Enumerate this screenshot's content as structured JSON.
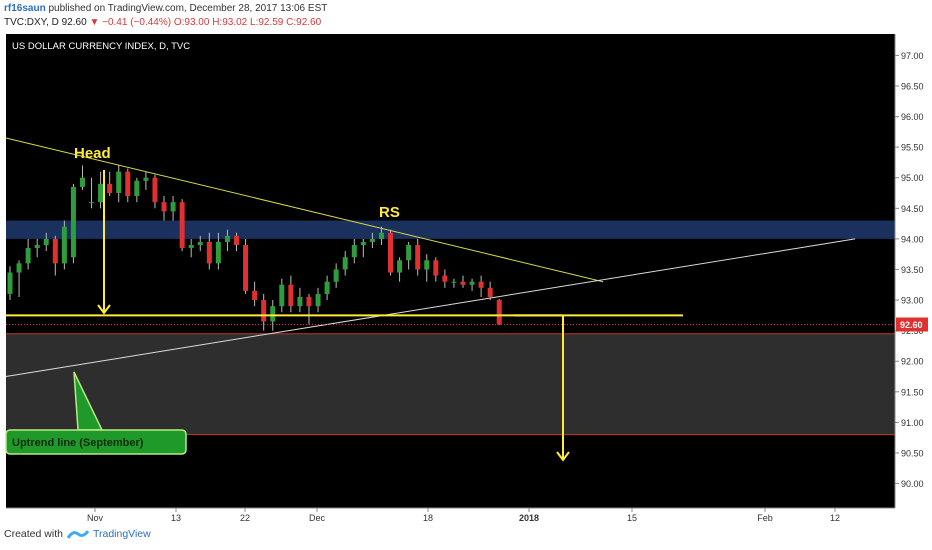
{
  "header": {
    "user": "rf16saun",
    "published": "published on TradingView.com, December 28, 2017 13:06 EST",
    "symbol": "TVC:DXY, D",
    "last": "92.60",
    "change": "−0.41 (−0.44%)",
    "ohlc": "O:93.00 H:93.02 L:92.59 C:92.60"
  },
  "footer": {
    "created": "Created with",
    "brand": "TradingView"
  },
  "colors": {
    "up": "#2e9e3c",
    "down": "#e03030",
    "yellow": "#ffeb3b",
    "zone": "#1e3a6e",
    "bg": "#000000"
  },
  "chart_data": {
    "type": "candlestick",
    "title": "US DOLLAR CURRENCY INDEX, D, TVC",
    "ylim": [
      89.6,
      97.35
    ],
    "y_ticks": [
      "97.00",
      "96.50",
      "96.00",
      "95.50",
      "95.00",
      "94.50",
      "94.00",
      "93.50",
      "93.00",
      "92.50",
      "92.00",
      "91.50",
      "91.00",
      "90.50",
      "90.00"
    ],
    "x_ticks": [
      "Nov",
      "13",
      "22",
      "Dec",
      "18",
      "2018",
      "15",
      "Feb",
      "12"
    ],
    "last_price_label": "92.60",
    "candles": [
      {
        "o": 93.1,
        "h": 93.55,
        "l": 93.0,
        "c": 93.45
      },
      {
        "o": 93.45,
        "h": 93.65,
        "l": 93.05,
        "c": 93.6
      },
      {
        "o": 93.6,
        "h": 94.0,
        "l": 93.5,
        "c": 93.85
      },
      {
        "o": 93.85,
        "h": 94.0,
        "l": 93.7,
        "c": 93.9
      },
      {
        "o": 93.9,
        "h": 94.1,
        "l": 93.8,
        "c": 94.0
      },
      {
        "o": 94.0,
        "h": 94.05,
        "l": 93.4,
        "c": 93.6
      },
      {
        "o": 93.6,
        "h": 94.3,
        "l": 93.5,
        "c": 94.2
      },
      {
        "o": 93.7,
        "h": 94.9,
        "l": 93.6,
        "c": 94.85
      },
      {
        "o": 94.85,
        "h": 95.2,
        "l": 94.8,
        "c": 95.0
      },
      {
        "o": 94.6,
        "h": 95.0,
        "l": 94.5,
        "c": 94.6
      },
      {
        "o": 94.6,
        "h": 95.1,
        "l": 94.5,
        "c": 94.9
      },
      {
        "o": 94.9,
        "h": 95.1,
        "l": 94.7,
        "c": 94.75
      },
      {
        "o": 94.75,
        "h": 95.2,
        "l": 94.6,
        "c": 95.1
      },
      {
        "o": 95.1,
        "h": 95.15,
        "l": 94.6,
        "c": 94.7
      },
      {
        "o": 94.7,
        "h": 95.0,
        "l": 94.6,
        "c": 94.95
      },
      {
        "o": 94.95,
        "h": 95.1,
        "l": 94.8,
        "c": 95.0
      },
      {
        "o": 95.0,
        "h": 95.05,
        "l": 94.5,
        "c": 94.6
      },
      {
        "o": 94.6,
        "h": 94.7,
        "l": 94.3,
        "c": 94.45
      },
      {
        "o": 94.45,
        "h": 94.7,
        "l": 94.3,
        "c": 94.6
      },
      {
        "o": 94.6,
        "h": 94.65,
        "l": 93.8,
        "c": 93.85
      },
      {
        "o": 93.85,
        "h": 94.0,
        "l": 93.7,
        "c": 93.9
      },
      {
        "o": 93.9,
        "h": 94.05,
        "l": 93.8,
        "c": 93.95
      },
      {
        "o": 93.95,
        "h": 94.1,
        "l": 93.5,
        "c": 93.6
      },
      {
        "o": 93.6,
        "h": 94.1,
        "l": 93.5,
        "c": 93.95
      },
      {
        "o": 93.95,
        "h": 94.15,
        "l": 93.8,
        "c": 94.05
      },
      {
        "o": 94.05,
        "h": 94.1,
        "l": 93.8,
        "c": 93.9
      },
      {
        "o": 93.9,
        "h": 94.0,
        "l": 93.1,
        "c": 93.15
      },
      {
        "o": 93.15,
        "h": 93.3,
        "l": 92.9,
        "c": 93.0
      },
      {
        "o": 93.0,
        "h": 93.1,
        "l": 92.5,
        "c": 92.65
      },
      {
        "o": 92.65,
        "h": 93.0,
        "l": 92.5,
        "c": 92.9
      },
      {
        "o": 92.9,
        "h": 93.35,
        "l": 92.8,
        "c": 93.25
      },
      {
        "o": 93.25,
        "h": 93.4,
        "l": 92.8,
        "c": 92.9
      },
      {
        "o": 92.9,
        "h": 93.2,
        "l": 92.8,
        "c": 93.05
      },
      {
        "o": 93.05,
        "h": 93.1,
        "l": 92.6,
        "c": 92.9
      },
      {
        "o": 92.9,
        "h": 93.2,
        "l": 92.8,
        "c": 93.1
      },
      {
        "o": 93.1,
        "h": 93.4,
        "l": 93.0,
        "c": 93.3
      },
      {
        "o": 93.3,
        "h": 93.6,
        "l": 93.2,
        "c": 93.5
      },
      {
        "o": 93.5,
        "h": 93.8,
        "l": 93.4,
        "c": 93.7
      },
      {
        "o": 93.7,
        "h": 94.0,
        "l": 93.6,
        "c": 93.9
      },
      {
        "o": 93.9,
        "h": 94.0,
        "l": 93.7,
        "c": 93.95
      },
      {
        "o": 93.95,
        "h": 94.1,
        "l": 93.85,
        "c": 94.0
      },
      {
        "o": 94.0,
        "h": 94.2,
        "l": 93.9,
        "c": 94.1
      },
      {
        "o": 94.1,
        "h": 94.15,
        "l": 93.4,
        "c": 93.45
      },
      {
        "o": 93.45,
        "h": 93.7,
        "l": 93.3,
        "c": 93.65
      },
      {
        "o": 93.65,
        "h": 93.95,
        "l": 93.5,
        "c": 93.9
      },
      {
        "o": 93.9,
        "h": 94.0,
        "l": 93.4,
        "c": 93.5
      },
      {
        "o": 93.5,
        "h": 93.75,
        "l": 93.3,
        "c": 93.65
      },
      {
        "o": 93.65,
        "h": 93.7,
        "l": 93.3,
        "c": 93.4
      },
      {
        "o": 93.4,
        "h": 93.5,
        "l": 93.2,
        "c": 93.3
      },
      {
        "o": 93.3,
        "h": 93.35,
        "l": 93.2,
        "c": 93.3
      },
      {
        "o": 93.3,
        "h": 93.4,
        "l": 93.2,
        "c": 93.25
      },
      {
        "o": 93.25,
        "h": 93.35,
        "l": 93.15,
        "c": 93.3
      },
      {
        "o": 93.3,
        "h": 93.4,
        "l": 93.05,
        "c": 93.2
      },
      {
        "o": 93.2,
        "h": 93.3,
        "l": 93.0,
        "c": 93.05
      },
      {
        "o": 93.0,
        "h": 93.02,
        "l": 92.59,
        "c": 92.6
      }
    ],
    "annotations": {
      "head": "Head",
      "rs": "RS",
      "uptrend": "Uptrend line (September)",
      "neckline_price": 92.75,
      "resistance_zone": [
        94.0,
        94.3
      ],
      "target_zone": [
        90.8,
        92.45
      ]
    }
  }
}
